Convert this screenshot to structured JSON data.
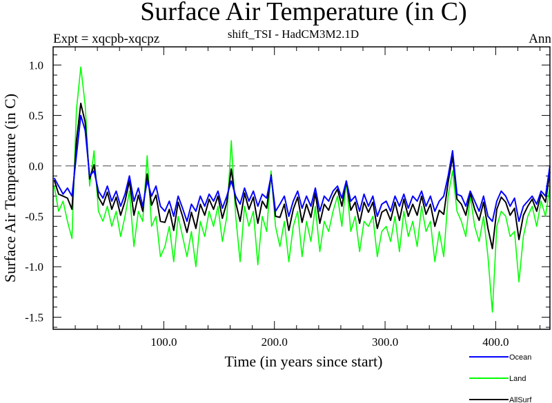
{
  "chart_data": {
    "type": "line",
    "title": "Surface Air Temperature (in C)",
    "subtitle_left": "Expt = xqcpb-xqcpz",
    "subtitle_center": "shift_TSI - HadCM3M2.1D",
    "subtitle_right": "Ann",
    "xlabel": "Time (in years since start)",
    "ylabel": "Surface Air Temperature (in C)",
    "xlim": [
      0,
      449
    ],
    "ylim": [
      -1.62,
      1.18
    ],
    "x_ticks": [
      100,
      200,
      300,
      400
    ],
    "x_tick_labels": [
      "100.0",
      "200.0",
      "300.0",
      "400.0"
    ],
    "y_ticks": [
      1.0,
      0.5,
      0.0,
      -0.5,
      -1.0,
      -1.5
    ],
    "y_tick_labels": [
      "1.0",
      "0.5",
      "0.0",
      "-0.5",
      "-1.0",
      "-1.5"
    ],
    "reference_line": {
      "y": 0.0,
      "style": "dashed",
      "color": "#808080"
    },
    "grid": false,
    "legend_placement": "bottom-right",
    "x": [
      1,
      5,
      9,
      13,
      17,
      21,
      25,
      29,
      33,
      37,
      41,
      45,
      49,
      53,
      57,
      61,
      65,
      69,
      73,
      77,
      81,
      85,
      89,
      93,
      97,
      101,
      105,
      109,
      113,
      117,
      121,
      125,
      129,
      133,
      137,
      141,
      145,
      149,
      153,
      157,
      161,
      165,
      169,
      173,
      177,
      181,
      185,
      189,
      193,
      197,
      201,
      205,
      209,
      213,
      217,
      221,
      225,
      229,
      233,
      237,
      241,
      245,
      249,
      253,
      257,
      261,
      265,
      269,
      273,
      277,
      281,
      285,
      289,
      293,
      297,
      301,
      305,
      309,
      313,
      317,
      321,
      325,
      329,
      333,
      337,
      341,
      345,
      349,
      353,
      357,
      361,
      365,
      369,
      373,
      377,
      381,
      385,
      389,
      393,
      397,
      401,
      405,
      409,
      413,
      417,
      421,
      425,
      429,
      433,
      437,
      441,
      445,
      449
    ],
    "series": [
      {
        "name": "Land",
        "color": "#00ff00",
        "values": [
          -0.2,
          -0.45,
          -0.35,
          -0.55,
          -0.72,
          0.55,
          0.98,
          0.6,
          -0.2,
          0.15,
          -0.45,
          -0.55,
          -0.4,
          -0.6,
          -0.45,
          -0.7,
          -0.5,
          -0.25,
          -0.8,
          -0.45,
          -0.55,
          0.1,
          -0.6,
          -0.5,
          -0.9,
          -0.8,
          -0.6,
          -0.95,
          -0.5,
          -0.7,
          -0.9,
          -0.65,
          -1.0,
          -0.55,
          -0.7,
          -0.45,
          -0.6,
          -0.4,
          -0.75,
          -0.5,
          0.25,
          -0.5,
          -0.95,
          -0.4,
          -0.6,
          -0.45,
          -0.98,
          -0.5,
          -0.65,
          -0.05,
          -0.6,
          -0.8,
          -0.55,
          -0.95,
          -0.6,
          -0.45,
          -0.9,
          -0.55,
          -0.75,
          -0.4,
          -0.85,
          -0.55,
          -0.65,
          -0.45,
          -0.3,
          -0.6,
          -0.15,
          -0.65,
          -0.5,
          -0.85,
          -0.55,
          -0.6,
          -0.5,
          -0.9,
          -0.65,
          -0.6,
          -0.75,
          -0.5,
          -0.85,
          -0.45,
          -0.7,
          -0.55,
          -0.8,
          -0.4,
          -0.65,
          -0.55,
          -0.95,
          -0.65,
          -0.9,
          -0.3,
          -0.05,
          -0.45,
          -0.55,
          -0.7,
          -0.3,
          -0.6,
          -0.75,
          -0.5,
          -0.9,
          -1.45,
          -0.6,
          -0.45,
          -0.5,
          -0.7,
          -0.65,
          -1.15,
          -0.7,
          -0.5,
          -0.4,
          -0.6,
          -0.35,
          -0.5,
          -0.2
        ]
      },
      {
        "name": "AllSurf",
        "color": "#000000",
        "values": [
          -0.14,
          -0.28,
          -0.3,
          -0.32,
          -0.43,
          0.24,
          0.62,
          0.43,
          -0.13,
          0.01,
          -0.31,
          -0.39,
          -0.26,
          -0.43,
          -0.31,
          -0.49,
          -0.35,
          -0.15,
          -0.49,
          -0.29,
          -0.45,
          -0.08,
          -0.39,
          -0.29,
          -0.55,
          -0.56,
          -0.43,
          -0.64,
          -0.36,
          -0.5,
          -0.66,
          -0.46,
          -0.62,
          -0.38,
          -0.49,
          -0.33,
          -0.43,
          -0.3,
          -0.52,
          -0.36,
          -0.03,
          -0.36,
          -0.55,
          -0.27,
          -0.43,
          -0.31,
          -0.57,
          -0.35,
          -0.42,
          -0.09,
          -0.5,
          -0.51,
          -0.38,
          -0.64,
          -0.43,
          -0.31,
          -0.56,
          -0.38,
          -0.51,
          -0.27,
          -0.57,
          -0.38,
          -0.44,
          -0.31,
          -0.23,
          -0.4,
          -0.15,
          -0.44,
          -0.36,
          -0.57,
          -0.36,
          -0.46,
          -0.36,
          -0.62,
          -0.46,
          -0.43,
          -0.54,
          -0.36,
          -0.54,
          -0.33,
          -0.5,
          -0.38,
          -0.49,
          -0.3,
          -0.48,
          -0.38,
          -0.6,
          -0.44,
          -0.48,
          -0.16,
          0.09,
          -0.33,
          -0.38,
          -0.49,
          -0.27,
          -0.43,
          -0.54,
          -0.36,
          -0.62,
          -0.82,
          -0.43,
          -0.31,
          -0.36,
          -0.49,
          -0.42,
          -0.73,
          -0.49,
          -0.4,
          -0.33,
          -0.45,
          -0.28,
          -0.36,
          -0.06
        ]
      },
      {
        "name": "Ocean",
        "color": "#0000ff",
        "values": [
          -0.12,
          -0.2,
          -0.28,
          -0.22,
          -0.3,
          0.1,
          0.5,
          0.35,
          -0.1,
          -0.05,
          -0.25,
          -0.32,
          -0.2,
          -0.35,
          -0.25,
          -0.4,
          -0.28,
          -0.1,
          -0.35,
          -0.22,
          -0.4,
          -0.15,
          -0.3,
          -0.2,
          -0.4,
          -0.45,
          -0.35,
          -0.5,
          -0.3,
          -0.42,
          -0.55,
          -0.38,
          -0.45,
          -0.3,
          -0.4,
          -0.28,
          -0.35,
          -0.25,
          -0.42,
          -0.3,
          -0.15,
          -0.3,
          -0.38,
          -0.22,
          -0.35,
          -0.25,
          -0.4,
          -0.28,
          -0.32,
          -0.1,
          -0.45,
          -0.38,
          -0.3,
          -0.5,
          -0.35,
          -0.25,
          -0.42,
          -0.3,
          -0.4,
          -0.22,
          -0.45,
          -0.3,
          -0.35,
          -0.25,
          -0.2,
          -0.32,
          -0.15,
          -0.35,
          -0.3,
          -0.45,
          -0.28,
          -0.4,
          -0.3,
          -0.5,
          -0.38,
          -0.35,
          -0.45,
          -0.3,
          -0.4,
          -0.28,
          -0.42,
          -0.3,
          -0.35,
          -0.25,
          -0.4,
          -0.3,
          -0.45,
          -0.35,
          -0.3,
          -0.1,
          0.15,
          -0.28,
          -0.3,
          -0.4,
          -0.25,
          -0.35,
          -0.45,
          -0.3,
          -0.5,
          -0.55,
          -0.35,
          -0.25,
          -0.3,
          -0.4,
          -0.32,
          -0.55,
          -0.4,
          -0.35,
          -0.3,
          -0.38,
          -0.25,
          -0.3,
          0.0
        ]
      }
    ],
    "legend": [
      {
        "label": "Ocean",
        "color": "#0000ff"
      },
      {
        "label": "Land",
        "color": "#00ff00"
      },
      {
        "label": "AllSurf",
        "color": "#000000"
      }
    ]
  }
}
